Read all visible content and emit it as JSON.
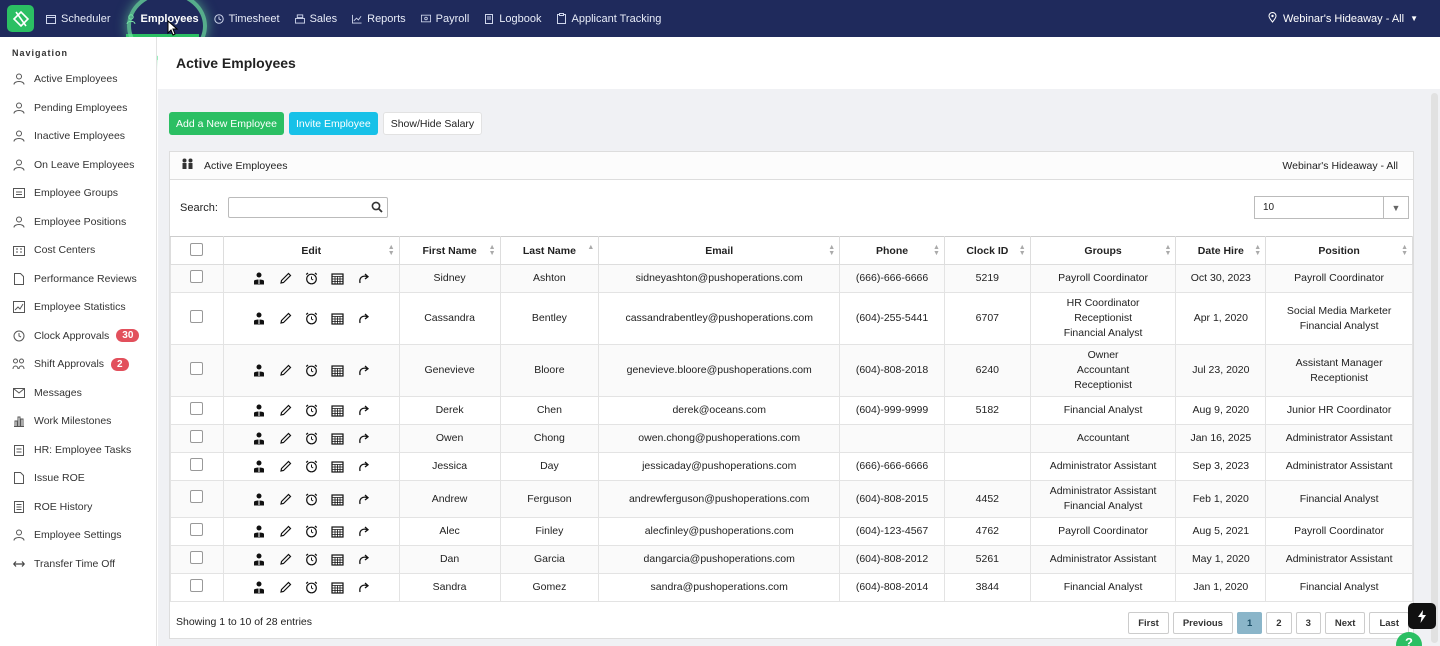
{
  "topnav": {
    "items": [
      {
        "label": "Scheduler",
        "icon": "calendar-icon"
      },
      {
        "label": "Employees",
        "icon": "person-icon",
        "active": true
      },
      {
        "label": "Timesheet",
        "icon": "clock-icon"
      },
      {
        "label": "Sales",
        "icon": "register-icon"
      },
      {
        "label": "Reports",
        "icon": "chart-icon"
      },
      {
        "label": "Payroll",
        "icon": "money-icon"
      },
      {
        "label": "Logbook",
        "icon": "book-icon"
      },
      {
        "label": "Applicant Tracking",
        "icon": "clipboard-icon"
      }
    ],
    "location": "Webinar's Hideaway - All"
  },
  "sidebar": {
    "heading": "Navigation",
    "items": [
      {
        "label": "Active Employees"
      },
      {
        "label": "Pending Employees"
      },
      {
        "label": "Inactive Employees"
      },
      {
        "label": "On Leave Employees"
      },
      {
        "label": "Employee Groups"
      },
      {
        "label": "Employee Positions"
      },
      {
        "label": "Cost Centers"
      },
      {
        "label": "Performance Reviews"
      },
      {
        "label": "Employee Statistics"
      },
      {
        "label": "Clock Approvals",
        "badge": "30"
      },
      {
        "label": "Shift Approvals",
        "badge": "2"
      },
      {
        "label": "Messages"
      },
      {
        "label": "Work Milestones"
      },
      {
        "label": "HR: Employee Tasks"
      },
      {
        "label": "Issue ROE"
      },
      {
        "label": "ROE History"
      },
      {
        "label": "Employee Settings"
      },
      {
        "label": "Transfer Time Off"
      }
    ]
  },
  "main": {
    "title": "Active Employees",
    "buttons": {
      "add": "Add a New Employee",
      "invite": "Invite Employee",
      "salary": "Show/Hide Salary"
    },
    "panel": {
      "title": "Active Employees",
      "location": "Webinar's Hideaway - All",
      "search_label": "Search:",
      "search_value": "",
      "page_size": "10"
    },
    "columns": [
      "Edit",
      "First Name",
      "Last Name",
      "Email",
      "Phone",
      "Clock ID",
      "Groups",
      "Date Hire",
      "Position"
    ],
    "rows": [
      {
        "first": "Sidney",
        "last": "Ashton",
        "email": "sidneyashton@pushoperations.com",
        "phone": "(666)-666-6666",
        "clock": "5219",
        "groups": [
          "Payroll Coordinator"
        ],
        "hire": "Oct 30, 2023",
        "position": [
          "Payroll Coordinator"
        ]
      },
      {
        "first": "Cassandra",
        "last": "Bentley",
        "email": "cassandrabentley@pushoperations.com",
        "phone": "(604)-255-5441",
        "clock": "6707",
        "groups": [
          "HR Coordinator",
          "Receptionist",
          "Financial Analyst"
        ],
        "hire": "Apr 1, 2020",
        "position": [
          "Social Media Marketer",
          "Financial Analyst"
        ]
      },
      {
        "first": "Genevieve",
        "last": "Bloore",
        "email": "genevieve.bloore@pushoperations.com",
        "phone": "(604)-808-2018",
        "clock": "6240",
        "groups": [
          "Owner",
          "Accountant",
          "Receptionist"
        ],
        "hire": "Jul 23, 2020",
        "position": [
          "Assistant Manager",
          "Receptionist"
        ]
      },
      {
        "first": "Derek",
        "last": "Chen",
        "email": "derek@oceans.com",
        "phone": "(604)-999-9999",
        "clock": "5182",
        "groups": [
          "Financial Analyst"
        ],
        "hire": "Aug 9, 2020",
        "position": [
          "Junior HR Coordinator"
        ]
      },
      {
        "first": "Owen",
        "last": "Chong",
        "email": "owen.chong@pushoperations.com",
        "phone": "",
        "clock": "",
        "groups": [
          "Accountant"
        ],
        "hire": "Jan 16, 2025",
        "position": [
          "Administrator Assistant"
        ]
      },
      {
        "first": "Jessica",
        "last": "Day",
        "email": "jessicaday@pushoperations.com",
        "phone": "(666)-666-6666",
        "clock": "",
        "groups": [
          "Administrator Assistant"
        ],
        "hire": "Sep 3, 2023",
        "position": [
          "Administrator Assistant"
        ]
      },
      {
        "first": "Andrew",
        "last": "Ferguson",
        "email": "andrewferguson@pushoperations.com",
        "phone": "(604)-808-2015",
        "clock": "4452",
        "groups": [
          "Administrator Assistant",
          "Financial Analyst"
        ],
        "hire": "Feb 1, 2020",
        "position": [
          "Financial Analyst"
        ]
      },
      {
        "first": "Alec",
        "last": "Finley",
        "email": "alecfinley@pushoperations.com",
        "phone": "(604)-123-4567",
        "clock": "4762",
        "groups": [
          "Payroll Coordinator"
        ],
        "hire": "Aug 5, 2021",
        "position": [
          "Payroll Coordinator"
        ]
      },
      {
        "first": "Dan",
        "last": "Garcia",
        "email": "dangarcia@pushoperations.com",
        "phone": "(604)-808-2012",
        "clock": "5261",
        "groups": [
          "Administrator Assistant"
        ],
        "hire": "May 1, 2020",
        "position": [
          "Administrator Assistant"
        ]
      },
      {
        "first": "Sandra",
        "last": "Gomez",
        "email": "sandra@pushoperations.com",
        "phone": "(604)-808-2014",
        "clock": "3844",
        "groups": [
          "Financial Analyst"
        ],
        "hire": "Jan 1, 2020",
        "position": [
          "Financial Analyst"
        ]
      }
    ],
    "footer": {
      "showing": "Showing 1 to 10 of 28 entries",
      "pager": [
        "First",
        "Previous",
        "1",
        "2",
        "3",
        "Next",
        "Last"
      ],
      "current_page": "1"
    }
  },
  "colors": {
    "nav_bg": "#1f2a5c",
    "accent_green": "#2bbf63",
    "cyan": "#17c1e8",
    "badge_red": "#e2505c"
  }
}
